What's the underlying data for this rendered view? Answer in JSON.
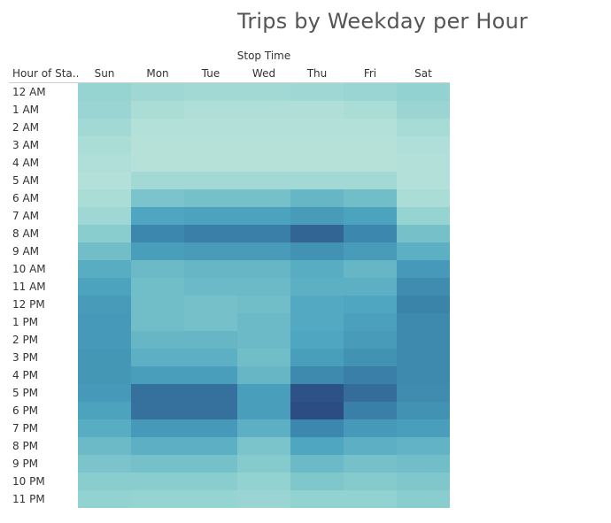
{
  "chart_data": {
    "type": "heatmap",
    "title": "Trips by Weekday per Hour",
    "column_header": "Stop Time",
    "row_header": "Hour of Sta..",
    "columns": [
      "Sun",
      "Mon",
      "Tue",
      "Wed",
      "Thu",
      "Fri",
      "Sat"
    ],
    "rows": [
      "12 AM",
      "1 AM",
      "2 AM",
      "3 AM",
      "4 AM",
      "5 AM",
      "6 AM",
      "7 AM",
      "8 AM",
      "9 AM",
      "10 AM",
      "11 AM",
      "12 PM",
      "1 PM",
      "2 PM",
      "3 PM",
      "4 PM",
      "5 PM",
      "6 PM",
      "7 PM",
      "8 PM",
      "9 PM",
      "10 PM",
      "11 PM"
    ],
    "values": [
      [
        0.2,
        0.16,
        0.14,
        0.14,
        0.16,
        0.18,
        0.22
      ],
      [
        0.18,
        0.1,
        0.08,
        0.08,
        0.08,
        0.1,
        0.18
      ],
      [
        0.14,
        0.06,
        0.06,
        0.06,
        0.06,
        0.06,
        0.12
      ],
      [
        0.1,
        0.05,
        0.05,
        0.05,
        0.05,
        0.05,
        0.08
      ],
      [
        0.08,
        0.05,
        0.05,
        0.05,
        0.05,
        0.05,
        0.06
      ],
      [
        0.06,
        0.14,
        0.14,
        0.14,
        0.14,
        0.14,
        0.06
      ],
      [
        0.1,
        0.32,
        0.34,
        0.34,
        0.4,
        0.36,
        0.1
      ],
      [
        0.16,
        0.5,
        0.52,
        0.52,
        0.58,
        0.52,
        0.2
      ],
      [
        0.26,
        0.74,
        0.78,
        0.78,
        0.9,
        0.74,
        0.34
      ],
      [
        0.36,
        0.56,
        0.58,
        0.58,
        0.66,
        0.58,
        0.44
      ],
      [
        0.46,
        0.38,
        0.4,
        0.4,
        0.46,
        0.4,
        0.6
      ],
      [
        0.52,
        0.36,
        0.38,
        0.38,
        0.44,
        0.44,
        0.7
      ],
      [
        0.58,
        0.36,
        0.34,
        0.36,
        0.48,
        0.5,
        0.76
      ],
      [
        0.6,
        0.36,
        0.34,
        0.38,
        0.48,
        0.54,
        0.72
      ],
      [
        0.6,
        0.4,
        0.4,
        0.38,
        0.5,
        0.58,
        0.72
      ],
      [
        0.62,
        0.44,
        0.44,
        0.36,
        0.56,
        0.66,
        0.72
      ],
      [
        0.62,
        0.56,
        0.56,
        0.4,
        0.72,
        0.78,
        0.72
      ],
      [
        0.6,
        0.84,
        0.84,
        0.56,
        0.98,
        0.86,
        0.7
      ],
      [
        0.52,
        0.84,
        0.84,
        0.56,
        1.0,
        0.78,
        0.66
      ],
      [
        0.46,
        0.6,
        0.6,
        0.44,
        0.74,
        0.6,
        0.56
      ],
      [
        0.38,
        0.44,
        0.44,
        0.32,
        0.5,
        0.44,
        0.42
      ],
      [
        0.32,
        0.34,
        0.34,
        0.28,
        0.38,
        0.34,
        0.36
      ],
      [
        0.26,
        0.26,
        0.26,
        0.22,
        0.3,
        0.28,
        0.3
      ],
      [
        0.22,
        0.2,
        0.2,
        0.18,
        0.22,
        0.22,
        0.26
      ]
    ],
    "color_scale": [
      "#bfe6dc",
      "#8ccfcf",
      "#4ea6c0",
      "#3b86ac",
      "#2c4d84"
    ]
  }
}
